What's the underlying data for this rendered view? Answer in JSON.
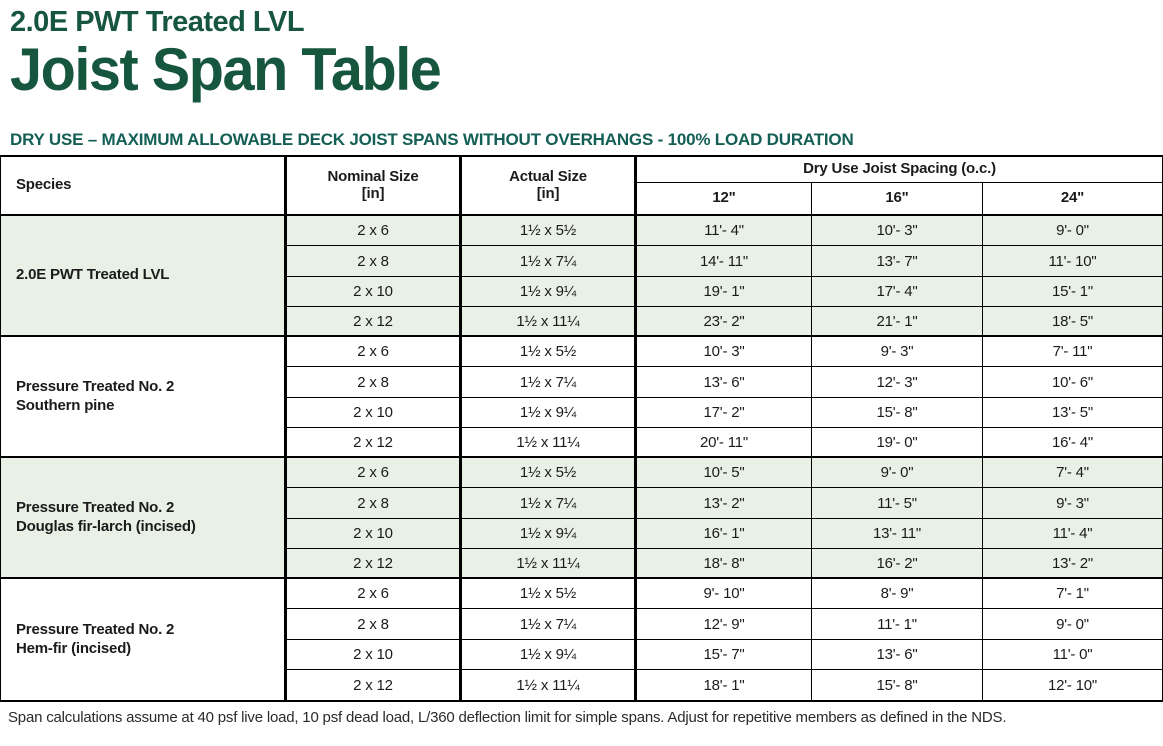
{
  "header": {
    "eyebrow": "2.0E PWT Treated LVL",
    "title": "Joist Span Table",
    "subtitle": "DRY USE – MAXIMUM ALLOWABLE DECK JOIST SPANS WITHOUT OVERHANGS - 100% LOAD DURATION"
  },
  "colors": {
    "title_green": "#16563E",
    "subtitle_teal": "#145F55",
    "shaded_row_green": "#E9F0E5",
    "border_black": "#000000"
  },
  "table": {
    "column_headers": {
      "species": "Species",
      "nominal_size": "Nominal Size",
      "nominal_size_unit": "[in]",
      "actual_size": "Actual Size",
      "actual_size_unit": "[in]",
      "spacing_group": "Dry Use Joist Spacing (o.c.)",
      "spacing": [
        "12\"",
        "16\"",
        "24\""
      ]
    },
    "groups": [
      {
        "species_line1": "2.0E PWT Treated LVL",
        "shaded": true,
        "rows": [
          {
            "nominal": "2 x 6",
            "actual": "1½ x 5½",
            "spans": [
              "11'- 4\"",
              "10'- 3\"",
              "9'- 0\""
            ]
          },
          {
            "nominal": "2 x 8",
            "actual": "1½ x 7¼",
            "spans": [
              "14'- 11\"",
              "13'- 7\"",
              "11'- 10\""
            ]
          },
          {
            "nominal": "2 x 10",
            "actual": "1½ x 9¼",
            "spans": [
              "19'- 1\"",
              "17'- 4\"",
              "15'- 1\""
            ]
          },
          {
            "nominal": "2 x 12",
            "actual": "1½ x 11¼",
            "spans": [
              "23'- 2\"",
              "21'- 1\"",
              "18'- 5\""
            ]
          }
        ]
      },
      {
        "species_line1": "Pressure Treated No. 2",
        "species_line2": "Southern pine",
        "shaded": false,
        "rows": [
          {
            "nominal": "2 x 6",
            "actual": "1½ x 5½",
            "spans": [
              "10'- 3\"",
              "9'- 3\"",
              "7'- 11\""
            ]
          },
          {
            "nominal": "2 x 8",
            "actual": "1½ x 7¼",
            "spans": [
              "13'- 6\"",
              "12'- 3\"",
              "10'- 6\""
            ]
          },
          {
            "nominal": "2 x 10",
            "actual": "1½ x 9¼",
            "spans": [
              "17'- 2\"",
              "15'- 8\"",
              "13'- 5\""
            ]
          },
          {
            "nominal": "2 x 12",
            "actual": "1½ x 11¼",
            "spans": [
              "20'- 11\"",
              "19'- 0\"",
              "16'- 4\""
            ]
          }
        ]
      },
      {
        "species_line1": "Pressure Treated No. 2",
        "species_line2": "Douglas fir-larch (incised)",
        "shaded": true,
        "rows": [
          {
            "nominal": "2 x 6",
            "actual": "1½ x 5½",
            "spans": [
              "10'- 5\"",
              "9'- 0\"",
              "7'- 4\""
            ]
          },
          {
            "nominal": "2 x 8",
            "actual": "1½ x 7¼",
            "spans": [
              "13'- 2\"",
              "11'- 5\"",
              "9'- 3\""
            ]
          },
          {
            "nominal": "2 x 10",
            "actual": "1½ x 9¼",
            "spans": [
              "16'- 1\"",
              "13'- 11\"",
              "11'- 4\""
            ]
          },
          {
            "nominal": "2 x 12",
            "actual": "1½ x 11¼",
            "spans": [
              "18'- 8\"",
              "16'- 2\"",
              "13'- 2\""
            ]
          }
        ]
      },
      {
        "species_line1": "Pressure Treated No. 2",
        "species_line2": "Hem-fir (incised)",
        "shaded": false,
        "rows": [
          {
            "nominal": "2 x 6",
            "actual": "1½ x 5½",
            "spans": [
              "9'- 10\"",
              "8'- 9\"",
              "7'- 1\""
            ]
          },
          {
            "nominal": "2 x 8",
            "actual": "1½ x 7¼",
            "spans": [
              "12'- 9\"",
              "11'- 1\"",
              "9'- 0\""
            ]
          },
          {
            "nominal": "2 x 10",
            "actual": "1½ x 9¼",
            "spans": [
              "15'- 7\"",
              "13'- 6\"",
              "11'- 0\""
            ]
          },
          {
            "nominal": "2 x 12",
            "actual": "1½ x 11¼",
            "spans": [
              "18'- 1\"",
              "15'- 8\"",
              "12'- 10\""
            ]
          }
        ]
      }
    ]
  },
  "footnote": "Span calculations assume at 40 psf live load, 10 psf dead load, L/360 deflection limit for simple spans. Adjust for repetitive members as defined in the NDS."
}
